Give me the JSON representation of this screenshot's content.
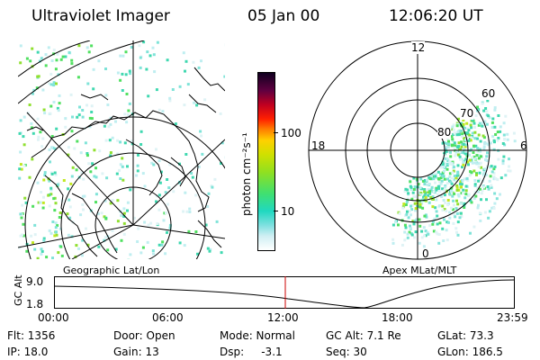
{
  "header": {
    "instrument": "Ultraviolet Imager",
    "date": "05 Jan 00",
    "time": "12:06:20 UT"
  },
  "geo_panel": {
    "label": "Geographic Lat/Lon"
  },
  "colorbar": {
    "unit_label": "photon cm⁻²s⁻¹",
    "ticks": [
      "100",
      "10"
    ],
    "scale": "log",
    "colors": [
      "#ffffff",
      "#cfeff3",
      "#7fe0e0",
      "#20d8c0",
      "#40e070",
      "#90e020",
      "#d0e000",
      "#ffd000",
      "#ff8000",
      "#ff2000",
      "#c00020",
      "#600040",
      "#100020"
    ]
  },
  "apex_panel": {
    "label": "Apex  MLat/MLT",
    "mlt_labels": {
      "top": "12",
      "right": "6",
      "bottom": "0",
      "left": "18"
    },
    "lat_labels": [
      "60",
      "70",
      "80"
    ]
  },
  "altitude_strip": {
    "ylabel": "GC Alt",
    "y_ticks": [
      "9.0",
      "1.8"
    ],
    "x_ticks": [
      "00:00",
      "06:00",
      "12:00",
      "18:00",
      "23:59"
    ]
  },
  "info": {
    "flt": "Flt: 1356",
    "door": "Door: Open",
    "mode": "Mode: Normal",
    "gc_alt": "GC Alt: 7.1 Re",
    "glat": "GLat:  73.3",
    "ip": "IP: 18.0",
    "gain": "Gain: 13",
    "dsp": "Dsp:     -3.1",
    "seq": "Seq: 30",
    "glon": "GLon: 186.5"
  }
}
